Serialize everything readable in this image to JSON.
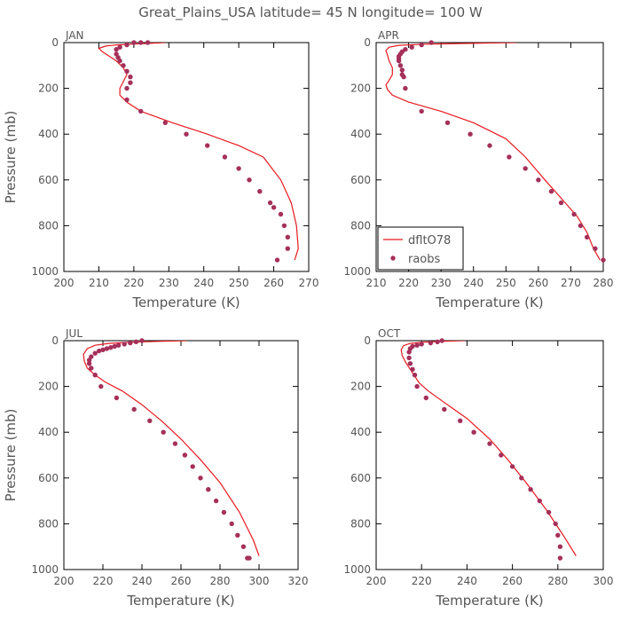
{
  "title": "Great_Plains_USA   latitude= 45 N longitude= 100 W",
  "colors": {
    "model": "#e8191f",
    "obs": "#a5305a",
    "axis": "#000000",
    "text": "#555555"
  },
  "legend": {
    "model_label": "dfltO78",
    "obs_label": "raobs",
    "panel": 1
  },
  "chart_data": [
    {
      "type": "line",
      "panel_label": "JAN",
      "xlabel": "Temperature (K)",
      "ylabel": "Pressure (mb)",
      "xlim": [
        200,
        270
      ],
      "ylim": [
        1000,
        0
      ],
      "xticks": [
        200,
        210,
        220,
        230,
        240,
        250,
        260,
        270
      ],
      "yticks": [
        0,
        200,
        400,
        600,
        800,
        1000
      ],
      "series": [
        {
          "name": "dfltO78",
          "t": [
            229,
            222,
            215,
            212,
            210,
            211,
            213,
            215,
            217,
            218,
            217,
            216,
            216,
            218,
            222,
            231,
            241,
            250,
            257,
            262,
            265,
            266.5,
            267,
            266
          ],
          "p": [
            0,
            5,
            10,
            15,
            25,
            40,
            60,
            80,
            110,
            140,
            170,
            200,
            230,
            260,
            300,
            350,
            400,
            450,
            500,
            600,
            700,
            800,
            900,
            950
          ]
        },
        {
          "name": "raobs",
          "t": [
            224,
            222,
            220,
            218,
            216,
            215,
            215,
            215.5,
            216,
            217,
            218,
            219,
            219,
            218,
            218,
            222,
            229,
            235,
            241,
            246,
            250,
            253,
            256,
            259,
            260,
            262,
            263,
            264,
            264,
            261
          ],
          "p": [
            0,
            0,
            0,
            10,
            20,
            30,
            50,
            65,
            80,
            100,
            125,
            150,
            175,
            200,
            250,
            300,
            350,
            400,
            450,
            500,
            550,
            600,
            650,
            700,
            720,
            750,
            800,
            850,
            900,
            950
          ]
        }
      ]
    },
    {
      "type": "line",
      "panel_label": "APR",
      "xlabel": "Temperature (K)",
      "ylabel": "",
      "xlim": [
        210,
        280
      ],
      "ylim": [
        1000,
        0
      ],
      "xticks": [
        210,
        220,
        230,
        240,
        250,
        260,
        270,
        280
      ],
      "yticks": [
        0,
        200,
        400,
        600,
        800,
        1000
      ],
      "series": [
        {
          "name": "dfltO78",
          "t": [
            253,
            240,
            225,
            217,
            214,
            213,
            213.5,
            214,
            215,
            215,
            214,
            213,
            213.5,
            215,
            220,
            230,
            240,
            250,
            256,
            262,
            267,
            272,
            275,
            277,
            279
          ],
          "p": [
            0,
            3,
            7,
            12,
            20,
            35,
            55,
            80,
            110,
            140,
            165,
            185,
            205,
            230,
            260,
            300,
            350,
            420,
            500,
            600,
            680,
            760,
            830,
            900,
            950
          ]
        },
        {
          "name": "raobs",
          "t": [
            227,
            224,
            221,
            219,
            218,
            217.5,
            217,
            217,
            217,
            217.5,
            218,
            218,
            218.5,
            219,
            224,
            232,
            239,
            245,
            251,
            256,
            260,
            264,
            267,
            271,
            273,
            275,
            277.5,
            280
          ],
          "p": [
            0,
            10,
            20,
            30,
            40,
            50,
            60,
            70,
            80,
            100,
            120,
            140,
            150,
            200,
            300,
            350,
            400,
            450,
            500,
            550,
            600,
            650,
            700,
            750,
            800,
            850,
            900,
            950
          ]
        }
      ]
    },
    {
      "type": "line",
      "panel_label": "JUL",
      "xlabel": "Temperature (K)",
      "ylabel": "Pressure (mb)",
      "xlim": [
        200,
        320
      ],
      "ylim": [
        1000,
        0
      ],
      "xticks": [
        200,
        220,
        240,
        260,
        280,
        300,
        320
      ],
      "yticks": [
        0,
        200,
        400,
        600,
        800,
        1000
      ],
      "series": [
        {
          "name": "dfltO78",
          "t": [
            263,
            248,
            233,
            223,
            216,
            212,
            210,
            210.5,
            212,
            216,
            221,
            230,
            240,
            250,
            260,
            270,
            280,
            290,
            297,
            300
          ],
          "p": [
            0,
            3,
            7,
            12,
            20,
            35,
            60,
            90,
            120,
            150,
            180,
            220,
            280,
            350,
            430,
            520,
            620,
            750,
            870,
            940
          ]
        },
        {
          "name": "raobs",
          "t": [
            240,
            237,
            234,
            231,
            228,
            226,
            224,
            222,
            220,
            218,
            216,
            214,
            213,
            213,
            214,
            216,
            219,
            227,
            236,
            244,
            251,
            257,
            262,
            266,
            270,
            274,
            278,
            282,
            286,
            289,
            292,
            294,
            295
          ],
          "p": [
            0,
            5,
            10,
            15,
            20,
            25,
            30,
            35,
            40,
            45,
            55,
            70,
            85,
            100,
            120,
            150,
            200,
            250,
            300,
            350,
            400,
            450,
            500,
            550,
            600,
            650,
            700,
            750,
            800,
            850,
            900,
            950,
            950
          ]
        }
      ]
    },
    {
      "type": "line",
      "panel_label": "OCT",
      "xlabel": "Temperature (K)",
      "ylabel": "",
      "xlim": [
        200,
        300
      ],
      "ylim": [
        1000,
        0
      ],
      "xticks": [
        200,
        220,
        240,
        260,
        280,
        300
      ],
      "yticks": [
        0,
        200,
        400,
        600,
        800,
        1000
      ],
      "series": [
        {
          "name": "dfltO78",
          "t": [
            239,
            228,
            220,
            215,
            212,
            211,
            211.5,
            213,
            215,
            217,
            219,
            223,
            230,
            240,
            250,
            258,
            266,
            275,
            283,
            288
          ],
          "p": [
            0,
            3,
            7,
            12,
            22,
            40,
            65,
            95,
            125,
            155,
            185,
            220,
            270,
            340,
            430,
            520,
            620,
            740,
            860,
            940
          ]
        },
        {
          "name": "raobs",
          "t": [
            229,
            227,
            224,
            220,
            218,
            216,
            215,
            214.5,
            214.5,
            215,
            216,
            217,
            218,
            222,
            230,
            237,
            243,
            250,
            255,
            260,
            264,
            268,
            272,
            276,
            279,
            280,
            281,
            281
          ],
          "p": [
            0,
            5,
            10,
            15,
            20,
            25,
            35,
            50,
            75,
            100,
            125,
            150,
            200,
            250,
            300,
            350,
            400,
            450,
            500,
            550,
            600,
            650,
            700,
            750,
            800,
            850,
            900,
            950
          ]
        }
      ]
    }
  ]
}
